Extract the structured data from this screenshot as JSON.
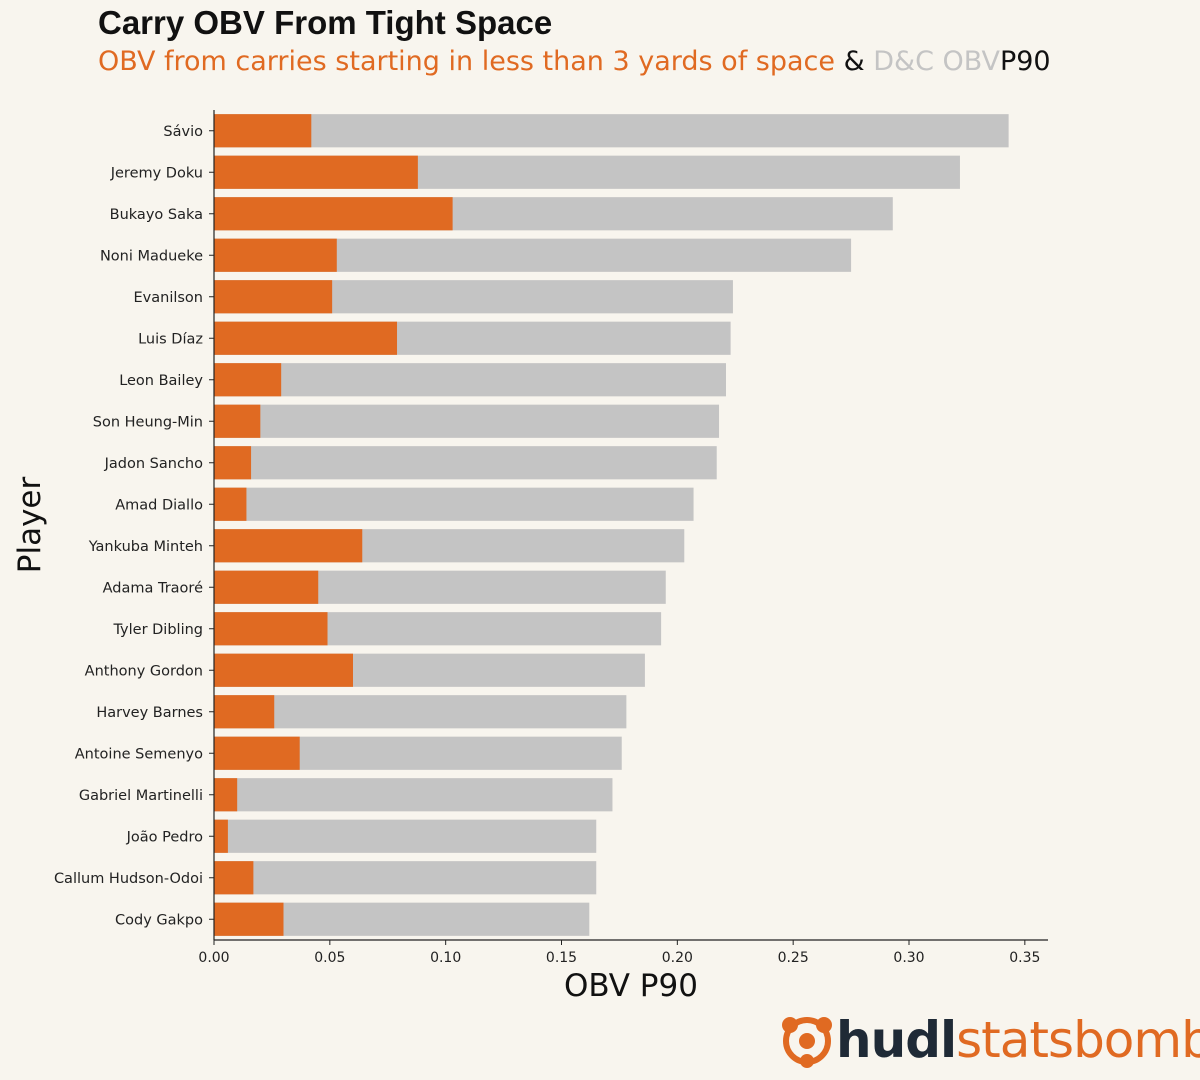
{
  "chart_data": {
    "type": "bar",
    "orientation": "horizontal",
    "title": "Carry OBV From Tight Space",
    "subtitle": {
      "part1": "OBV from carries starting in less than 3 yards of space",
      "part2": "&",
      "part3": "D&C OBV",
      "part4": "P90"
    },
    "xlabel": "OBV P90",
    "ylabel": "Player",
    "xlim": [
      0,
      0.36
    ],
    "xticks": [
      0.0,
      0.05,
      0.1,
      0.15,
      0.2,
      0.25,
      0.3,
      0.35
    ],
    "xtick_labels": [
      "0.00",
      "0.05",
      "0.10",
      "0.15",
      "0.20",
      "0.25",
      "0.30",
      "0.35"
    ],
    "categories": [
      "Sávio",
      "Jeremy Doku",
      "Bukayo Saka",
      "Noni Madueke",
      "Evanilson",
      "Luis Díaz",
      "Leon Bailey",
      "Son Heung-Min",
      "Jadon Sancho",
      "Amad Diallo",
      "Yankuba Minteh",
      "Adama Traoré",
      "Tyler Dibling",
      "Anthony Gordon",
      "Harvey Barnes",
      "Antoine Semenyo",
      "Gabriel Martinelli",
      "João Pedro",
      "Callum Hudson-Odoi",
      "Cody Gakpo"
    ],
    "series": [
      {
        "name": "D&C OBV P90",
        "color": "#c4c4c4",
        "values": [
          0.343,
          0.322,
          0.293,
          0.275,
          0.224,
          0.223,
          0.221,
          0.218,
          0.217,
          0.207,
          0.203,
          0.195,
          0.193,
          0.186,
          0.178,
          0.176,
          0.172,
          0.165,
          0.165,
          0.162
        ]
      },
      {
        "name": "OBV from carries starting in less than 3 yards of space",
        "color": "#e06a22",
        "values": [
          0.042,
          0.088,
          0.103,
          0.053,
          0.051,
          0.079,
          0.029,
          0.02,
          0.016,
          0.014,
          0.064,
          0.045,
          0.049,
          0.06,
          0.026,
          0.037,
          0.01,
          0.006,
          0.017,
          0.03
        ]
      }
    ],
    "background": "#f8f5ee"
  },
  "logo": {
    "part1": "hudl",
    "part2": "statsbomb",
    "icon": "statsbomb-logo-icon"
  }
}
